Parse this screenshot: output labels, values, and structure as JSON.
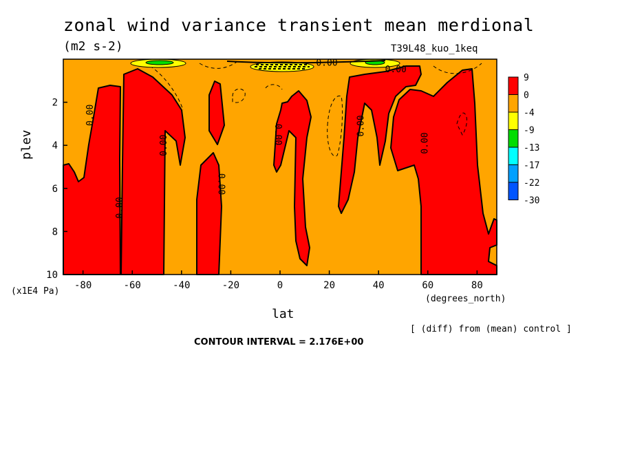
{
  "header": {
    "title": "zonal wind variance transient mean merdional",
    "units": "(m2 s-2)",
    "run": "T39L48_kuo_1keq"
  },
  "footer": {
    "yunit": "(x1E4 Pa)",
    "xunit": "(degrees_north)",
    "diff": "[ (diff) from (mean) control ]",
    "contour_interval": "CONTOUR INTERVAL = 2.176E+00"
  },
  "colors": {
    "red": "#ff0000",
    "orange": "#ffa500",
    "yellow": "#ffff00",
    "green": "#00dd00",
    "cyan": "#00ffff",
    "sky": "#00a0ff",
    "blue": "#0055ff"
  },
  "chart_data": {
    "type": "contour",
    "xlabel": "lat",
    "ylabel": "plev",
    "xlim": [
      -88,
      88
    ],
    "ylim": [
      10,
      0
    ],
    "xticks": [
      "-80",
      "-60",
      "-40",
      "-20",
      "0",
      "20",
      "40",
      "60",
      "80"
    ],
    "xtick_values": [
      -80,
      -60,
      -40,
      -20,
      0,
      20,
      40,
      60,
      80
    ],
    "yticks": [
      "2",
      "4",
      "6",
      "8",
      "10"
    ],
    "ytick_values": [
      2,
      4,
      6,
      8,
      10
    ],
    "legend": {
      "position": "right",
      "levels": [
        "9",
        "0",
        "-4",
        "-9",
        "-13",
        "-17",
        "-22",
        "-30"
      ],
      "colors": [
        "#ff0000",
        "#ffa500",
        "#ffff00",
        "#00dd00",
        "#00ffff",
        "#00a0ff",
        "#0055ff"
      ]
    },
    "contour_labels": [
      {
        "text": "0.00",
        "lat": -77,
        "plev": 2.6,
        "rotate": -90
      },
      {
        "text": "0.00",
        "lat": -65,
        "plev": 6.9,
        "rotate": -90
      },
      {
        "text": "0.00",
        "lat": -47,
        "plev": 4.0,
        "rotate": -90
      },
      {
        "text": "0.00",
        "lat": -24,
        "plev": 5.8,
        "rotate": 90
      },
      {
        "text": "0.00",
        "lat": -1,
        "plev": 3.5,
        "rotate": 90
      },
      {
        "text": "0.00",
        "lat": 33,
        "plev": 3.1,
        "rotate": -90
      },
      {
        "text": "0.00",
        "lat": 59,
        "plev": 3.9,
        "rotate": -90
      },
      {
        "text": "0.00",
        "lat": 19,
        "plev": 0.0,
        "rotate": 0
      },
      {
        "text": "0.00",
        "lat": 47,
        "plev": 0.5,
        "rotate": 0
      }
    ]
  }
}
